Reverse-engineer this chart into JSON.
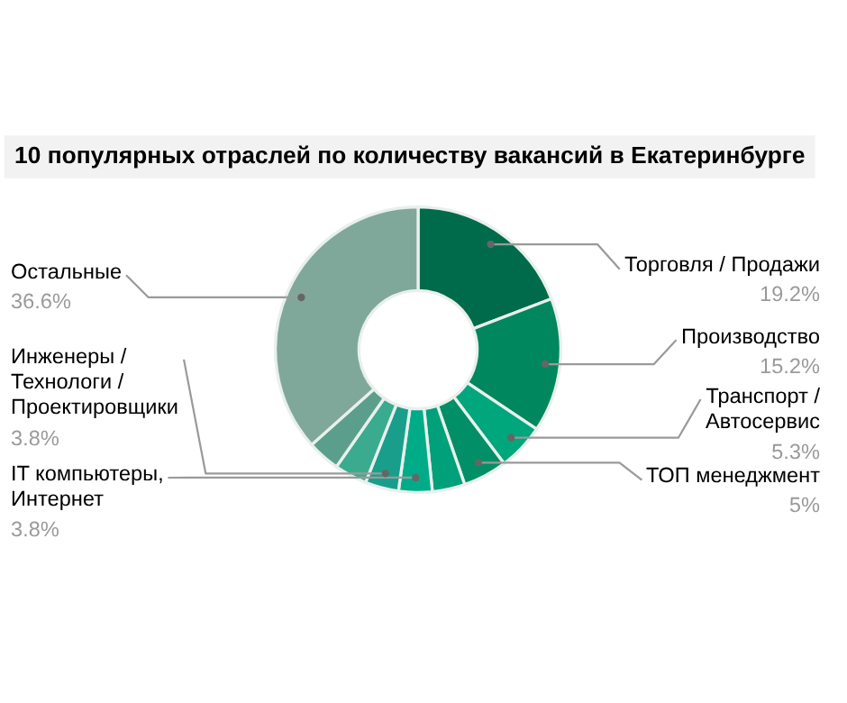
{
  "chart_data": {
    "type": "donut",
    "title": "10 популярных отраслей по количеству вакансий в Екатеринбурге",
    "categories": [
      "Торговля / Продажи",
      "Производство",
      "Транспорт /\nАвтосервис",
      "ТОП менеджмент",
      null,
      "IT компьютеры,\nИнтернет",
      "Инженеры /\nТехнологи /\nПроектировщики",
      null,
      null,
      "Остальные"
    ],
    "values": [
      19.2,
      15.2,
      5.3,
      5,
      3.7,
      3.8,
      3.8,
      3.7,
      3.7,
      36.6
    ],
    "value_labels": [
      "19.2%",
      "15.2%",
      "5.3%",
      "5%",
      null,
      "3.8%",
      "3.8%",
      null,
      null,
      "36.6%"
    ],
    "colors": [
      "#006b4a",
      "#00875e",
      "#00a67c",
      "#008f66",
      "#00a07a",
      "#00ac88",
      "#1a9e8c",
      "#3aab8e",
      "#5c9e8c",
      "#80a89a"
    ]
  }
}
